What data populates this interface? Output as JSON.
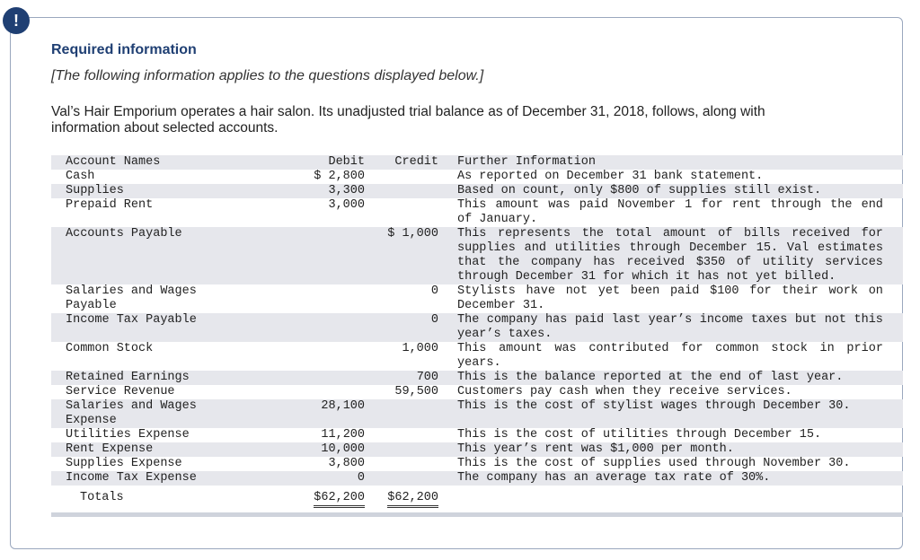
{
  "header": {
    "icon": "!",
    "title": "Required information",
    "note": "[The following information applies to the questions displayed below.]",
    "intro": "Val’s Hair Emporium operates a hair salon. Its unadjusted trial balance as of December 31, 2018, follows, along with information about selected accounts."
  },
  "table": {
    "columns": [
      "Account Names",
      "Debit",
      "Credit",
      "Further Information"
    ],
    "rows": [
      {
        "account": "Cash",
        "debit": "$ 2,800",
        "info": "As reported on December 31 bank statement."
      },
      {
        "account": "Supplies",
        "debit": "3,300",
        "info": "Based on count, only $800 of supplies still exist."
      },
      {
        "account": "Prepaid Rent",
        "debit": "3,000",
        "info": "This amount was paid November 1 for rent through the end of January."
      },
      {
        "account": "Accounts Payable",
        "credit": "$ 1,000",
        "info": "This represents the total amount of bills received for supplies and utilities through December 15. Val estimates that the company has received $350 of utility services through December 31 for which it has not yet billed."
      },
      {
        "account": "Salaries and Wages Payable",
        "credit": "0",
        "info": "Stylists have not yet been paid $100 for their work on December 31."
      },
      {
        "account": "Income Tax Payable",
        "credit": "0",
        "info": "The company has paid last year’s income taxes but not this year’s taxes."
      },
      {
        "account": "Common Stock",
        "credit": "1,000",
        "info": "This amount was contributed for common stock in prior years."
      },
      {
        "account": "Retained Earnings",
        "credit": "700",
        "info": "This is the balance reported at the end of last year."
      },
      {
        "account": "Service Revenue",
        "credit": "59,500",
        "info": "Customers pay cash when they receive services."
      },
      {
        "account": "Salaries and Wages Expense",
        "debit": "28,100",
        "info": "This is the cost of stylist wages through December 30."
      },
      {
        "account": "Utilities Expense",
        "debit": "11,200",
        "info": "This is the cost of utilities through December 15."
      },
      {
        "account": "Rent Expense",
        "debit": "10,000",
        "info": "This year’s rent was $1,000 per month."
      },
      {
        "account": "Supplies Expense",
        "debit": "3,800",
        "info": "This is the cost of supplies used through November 30."
      },
      {
        "account": "Income Tax Expense",
        "debit": "0",
        "info": "The company has an average tax rate of 30%."
      }
    ],
    "totals": {
      "label": "Totals",
      "debit": "$62,200",
      "credit": "$62,200"
    }
  }
}
